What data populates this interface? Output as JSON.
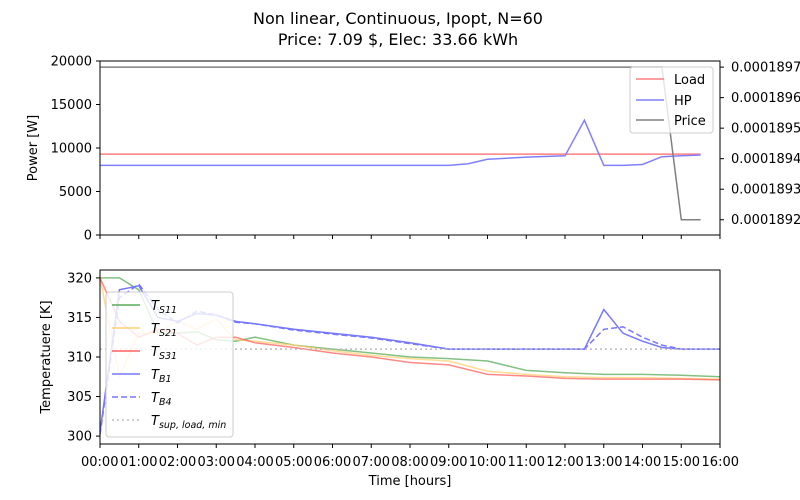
{
  "title_line1": "Non linear, Continuous, Ipopt, N=60",
  "title_line2": "Price: 7.09 $, Elec: 33.66 kWh",
  "chart_data": [
    {
      "type": "line",
      "ylabel": "Power [W]",
      "y2label": "",
      "ylim": [
        0,
        20000
      ],
      "y2lim": [
        0.00018915,
        0.00018972
      ],
      "xlim": [
        0,
        16
      ],
      "yticks": [
        "0",
        "5000",
        "10000",
        "15000",
        "20000"
      ],
      "y2ticks": [
        "0.0001892",
        "0.0001893",
        "0.0001894",
        "0.0001895",
        "0.0001896",
        "0.0001897"
      ],
      "y2tick_values": [
        0.0001892,
        0.0001893,
        0.0001894,
        0.0001895,
        0.0001896,
        0.0001897
      ],
      "legend_position": "top-right",
      "series": [
        {
          "name": "Load",
          "axis": "left",
          "color": "#ff7f7f",
          "style": "solid",
          "x": [
            0,
            15.5
          ],
          "y": [
            9300,
            9300
          ]
        },
        {
          "name": "HP",
          "axis": "left",
          "color": "#8080ff",
          "style": "solid",
          "x": [
            0,
            9,
            9.5,
            10,
            11,
            12,
            12.5,
            13,
            13.5,
            14,
            14.5,
            15,
            15.5
          ],
          "y": [
            8000,
            8000,
            8200,
            8700,
            8950,
            9100,
            13200,
            8000,
            8000,
            8100,
            9000,
            9100,
            9200
          ]
        },
        {
          "name": "Price",
          "axis": "right",
          "color": "#808080",
          "style": "solid",
          "x": [
            0,
            14.5,
            15,
            15.5
          ],
          "y": [
            0.0001897,
            0.0001897,
            0.0001892,
            0.0001892
          ]
        }
      ]
    },
    {
      "type": "line",
      "xlabel": "Time [hours]",
      "ylabel": "Temperatuere [K]",
      "ylim": [
        299,
        321
      ],
      "xlim": [
        0,
        16
      ],
      "yticks": [
        "300",
        "305",
        "310",
        "315",
        "320"
      ],
      "xticks": [
        "00:00",
        "01:00",
        "02:00",
        "03:00",
        "04:00",
        "05:00",
        "06:00",
        "07:00",
        "08:00",
        "09:00",
        "10:00",
        "11:00",
        "12:00",
        "13:00",
        "14:00",
        "15:00",
        "16:00"
      ],
      "legend_position": "lower-left",
      "series": [
        {
          "name": "T_S11",
          "sub": "S11",
          "color": "#5aab5a",
          "style": "solid",
          "x": [
            0,
            0.5,
            1,
            1.5,
            2,
            2.5,
            3,
            3.5,
            4,
            5,
            6,
            7,
            8,
            9,
            10,
            11,
            12,
            13,
            14,
            15,
            16
          ],
          "y": [
            320,
            320,
            318.5,
            313,
            313,
            313.2,
            312.2,
            312,
            312.5,
            311.5,
            311,
            310.5,
            310,
            309.8,
            309.5,
            308.3,
            308,
            307.8,
            307.8,
            307.7,
            307.5
          ]
        },
        {
          "name": "T_S21",
          "sub": "S21",
          "color": "#ffd070",
          "style": "solid",
          "x": [
            0,
            0.5,
            1,
            1.5,
            2,
            2.5,
            3,
            3.5,
            4,
            5,
            6,
            7,
            8,
            9,
            10,
            11,
            12,
            13,
            14,
            15,
            16
          ],
          "y": [
            320,
            307.5,
            313,
            313,
            314.5,
            313.5,
            314.8,
            312.2,
            312,
            311.5,
            310.8,
            310.2,
            309.8,
            309.5,
            308.2,
            307.8,
            307.5,
            307.4,
            307.4,
            307.3,
            307.2
          ]
        },
        {
          "name": "T_S31",
          "sub": "S31",
          "color": "#ff6060",
          "style": "solid",
          "x": [
            0,
            0.5,
            1,
            1.5,
            2,
            2.5,
            3,
            3.5,
            4,
            5,
            6,
            7,
            8,
            9,
            10,
            11,
            12,
            13,
            14,
            15,
            16
          ],
          "y": [
            320,
            314.5,
            312.5,
            313.5,
            313,
            311.5,
            312.5,
            312.5,
            311.8,
            311.2,
            310.5,
            310,
            309.3,
            309,
            307.8,
            307.6,
            307.3,
            307.2,
            307.2,
            307.2,
            307.1
          ]
        },
        {
          "name": "T_B1",
          "sub": "B1",
          "color": "#7777ff",
          "style": "solid",
          "x": [
            0,
            0.5,
            1,
            1.5,
            2,
            2.5,
            3,
            3.5,
            4,
            5,
            6,
            7,
            8,
            9,
            10,
            11,
            12,
            12.5,
            13,
            13.5,
            14,
            14.5,
            15,
            16
          ],
          "y": [
            300.5,
            318.5,
            319,
            315,
            314.5,
            315.5,
            315.3,
            314.5,
            314.2,
            313.5,
            313,
            312.5,
            311.8,
            311,
            311,
            311,
            311,
            311,
            316,
            313,
            312,
            311.2,
            311,
            311
          ]
        },
        {
          "name": "T_B4",
          "sub": "B4",
          "color": "#7777ff",
          "style": "dashed",
          "x": [
            0,
            0.5,
            1,
            1.5,
            2,
            2.5,
            3,
            3.5,
            4,
            5,
            6,
            7,
            8,
            9,
            10,
            11,
            12,
            12.5,
            13,
            13.5,
            14,
            14.5,
            15,
            16
          ],
          "y": [
            300.2,
            317.5,
            319.2,
            316,
            314.3,
            315.8,
            315.3,
            314.4,
            314.2,
            313.4,
            312.9,
            312.4,
            311.7,
            311,
            311,
            311,
            311,
            311,
            313.5,
            313.8,
            312.5,
            311.5,
            311,
            311
          ]
        },
        {
          "name": "T_sup,load,min",
          "sub": "sup, load, min",
          "color": "#bbbbbb",
          "style": "dotted",
          "x": [
            0,
            16
          ],
          "y": [
            311,
            311
          ]
        }
      ]
    }
  ]
}
